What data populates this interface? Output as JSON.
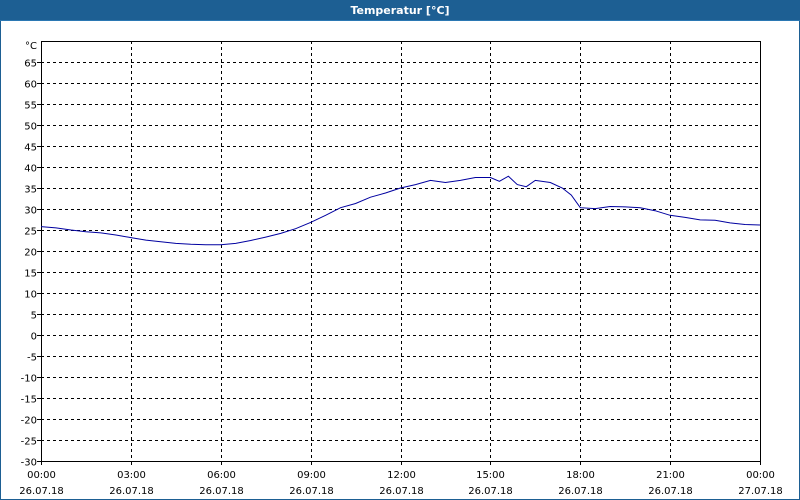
{
  "window": {
    "title": "Temperatur [°C]"
  },
  "chart_data": {
    "type": "line",
    "title": "Temperatur [°C]",
    "y_unit_label": "°C",
    "ylim": [
      -30,
      70
    ],
    "yticks": [
      -30,
      -25,
      -20,
      -15,
      -10,
      -5,
      0,
      5,
      10,
      15,
      20,
      25,
      30,
      35,
      40,
      45,
      50,
      55,
      60,
      65
    ],
    "xlim_hours": [
      0,
      24
    ],
    "grid": true,
    "xticks": [
      {
        "hour": 0,
        "time": "00:00",
        "date": "26.07.18"
      },
      {
        "hour": 3,
        "time": "03:00",
        "date": "26.07.18"
      },
      {
        "hour": 6,
        "time": "06:00",
        "date": "26.07.18"
      },
      {
        "hour": 9,
        "time": "09:00",
        "date": "26.07.18"
      },
      {
        "hour": 12,
        "time": "12:00",
        "date": "26.07.18"
      },
      {
        "hour": 15,
        "time": "15:00",
        "date": "26.07.18"
      },
      {
        "hour": 18,
        "time": "18:00",
        "date": "26.07.18"
      },
      {
        "hour": 21,
        "time": "21:00",
        "date": "26.07.18"
      },
      {
        "hour": 24,
        "time": "00:00",
        "date": "27.07.18"
      }
    ],
    "series": [
      {
        "color": "#0000a0",
        "points": [
          [
            0.0,
            25.8
          ],
          [
            0.5,
            25.5
          ],
          [
            1.0,
            25.0
          ],
          [
            1.5,
            24.6
          ],
          [
            2.0,
            24.3
          ],
          [
            2.5,
            23.8
          ],
          [
            3.0,
            23.2
          ],
          [
            3.5,
            22.6
          ],
          [
            4.0,
            22.2
          ],
          [
            4.5,
            21.8
          ],
          [
            5.0,
            21.6
          ],
          [
            5.5,
            21.5
          ],
          [
            6.0,
            21.5
          ],
          [
            6.5,
            21.8
          ],
          [
            7.0,
            22.5
          ],
          [
            7.5,
            23.3
          ],
          [
            8.0,
            24.2
          ],
          [
            8.5,
            25.3
          ],
          [
            9.0,
            26.8
          ],
          [
            9.5,
            28.5
          ],
          [
            10.0,
            30.3
          ],
          [
            10.5,
            31.3
          ],
          [
            11.0,
            32.8
          ],
          [
            11.5,
            33.8
          ],
          [
            12.0,
            35.0
          ],
          [
            12.5,
            35.8
          ],
          [
            13.0,
            36.8
          ],
          [
            13.5,
            36.3
          ],
          [
            14.0,
            36.8
          ],
          [
            14.5,
            37.5
          ],
          [
            15.0,
            37.5
          ],
          [
            15.3,
            36.6
          ],
          [
            15.6,
            37.8
          ],
          [
            15.9,
            35.8
          ],
          [
            16.2,
            35.3
          ],
          [
            16.5,
            36.8
          ],
          [
            17.0,
            36.3
          ],
          [
            17.4,
            35.0
          ],
          [
            17.7,
            33.3
          ],
          [
            18.0,
            30.3
          ],
          [
            18.5,
            30.1
          ],
          [
            19.0,
            30.6
          ],
          [
            19.5,
            30.5
          ],
          [
            20.0,
            30.3
          ],
          [
            20.5,
            29.6
          ],
          [
            21.0,
            28.5
          ],
          [
            21.5,
            28.0
          ],
          [
            22.0,
            27.4
          ],
          [
            22.5,
            27.3
          ],
          [
            23.0,
            26.7
          ],
          [
            23.5,
            26.3
          ],
          [
            24.0,
            26.2
          ]
        ]
      }
    ]
  }
}
